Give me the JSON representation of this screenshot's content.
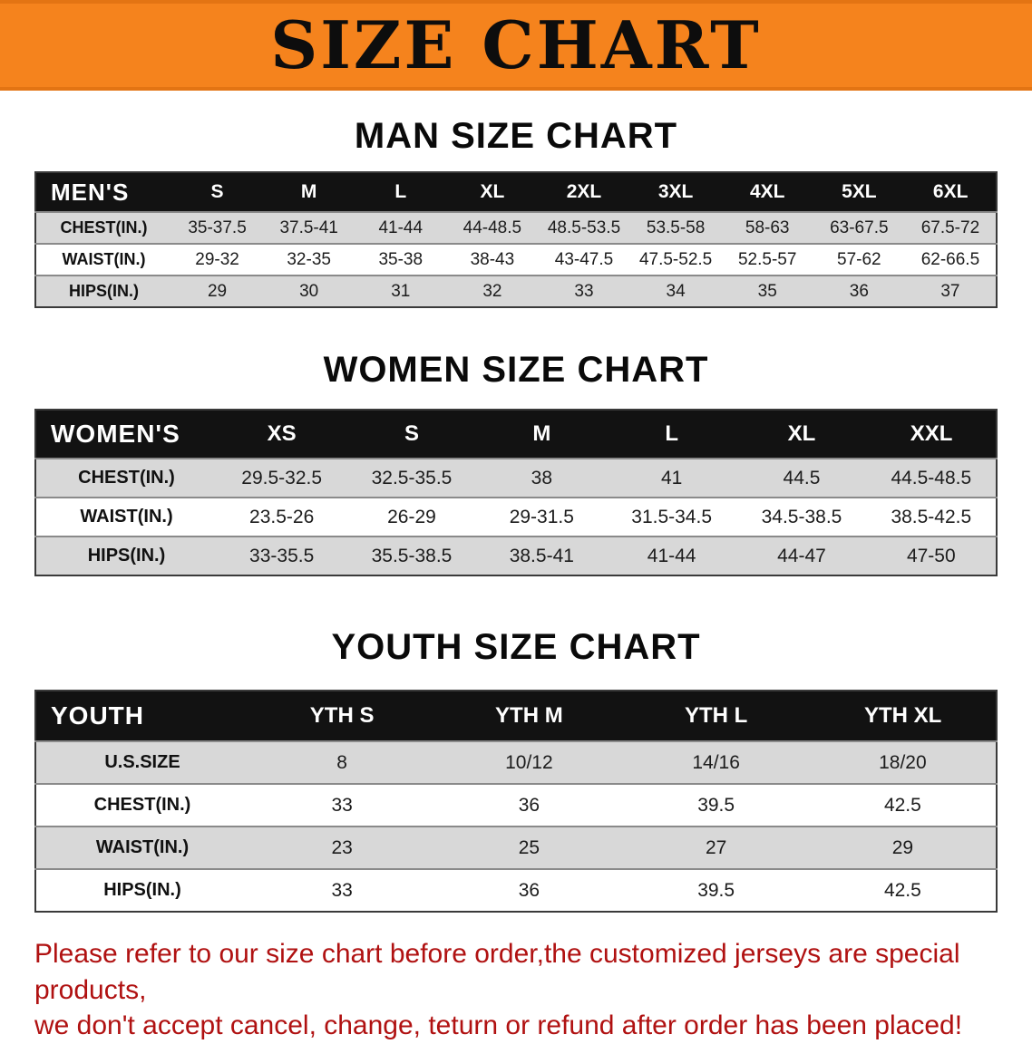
{
  "banner": {
    "title": "SIZE CHART",
    "background_color": "#f5831d",
    "text_color": "#0d0d0d"
  },
  "sections": [
    {
      "id": "men",
      "heading": "MAN SIZE CHART",
      "table": {
        "header": [
          "MEN'S",
          "S",
          "M",
          "L",
          "XL",
          "2XL",
          "3XL",
          "4XL",
          "5XL",
          "6XL"
        ],
        "rows": [
          {
            "label": "CHEST(IN.)",
            "values": [
              "35-37.5",
              "37.5-41",
              "41-44",
              "44-48.5",
              "48.5-53.5",
              "53.5-58",
              "58-63",
              "63-67.5",
              "67.5-72"
            ]
          },
          {
            "label": "WAIST(IN.)",
            "values": [
              "29-32",
              "32-35",
              "35-38",
              "38-43",
              "43-47.5",
              "47.5-52.5",
              "52.5-57",
              "57-62",
              "62-66.5"
            ]
          },
          {
            "label": "HIPS(IN.)",
            "values": [
              "29",
              "30",
              "31",
              "32",
              "33",
              "34",
              "35",
              "36",
              "37"
            ]
          }
        ]
      }
    },
    {
      "id": "women",
      "heading": "WOMEN SIZE CHART",
      "table": {
        "header": [
          "WOMEN'S",
          "XS",
          "S",
          "M",
          "L",
          "XL",
          "XXL"
        ],
        "rows": [
          {
            "label": "CHEST(IN.)",
            "values": [
              "29.5-32.5",
              "32.5-35.5",
              "38",
              "41",
              "44.5",
              "44.5-48.5"
            ]
          },
          {
            "label": "WAIST(IN.)",
            "values": [
              "23.5-26",
              "26-29",
              "29-31.5",
              "31.5-34.5",
              "34.5-38.5",
              "38.5-42.5"
            ]
          },
          {
            "label": "HIPS(IN.)",
            "values": [
              "33-35.5",
              "35.5-38.5",
              "38.5-41",
              "41-44",
              "44-47",
              "47-50"
            ]
          }
        ]
      }
    },
    {
      "id": "youth",
      "heading": "YOUTH SIZE CHART",
      "table": {
        "header": [
          "YOUTH",
          "YTH S",
          "YTH M",
          "YTH L",
          "YTH XL"
        ],
        "rows": [
          {
            "label": "U.S.SIZE",
            "values": [
              "8",
              "10/12",
              "14/16",
              "18/20"
            ]
          },
          {
            "label": "CHEST(IN.)",
            "values": [
              "33",
              "36",
              "39.5",
              "42.5"
            ]
          },
          {
            "label": "WAIST(IN.)",
            "values": [
              "23",
              "25",
              "27",
              "29"
            ]
          },
          {
            "label": "HIPS(IN.)",
            "values": [
              "33",
              "36",
              "39.5",
              "42.5"
            ]
          }
        ]
      }
    }
  ],
  "footer": {
    "text_color": "#b01111",
    "lines": [
      "Please refer to our size chart before order,the customized jerseys are special products,",
      "we don't accept cancel, change, teturn or refund after order has been placed!"
    ]
  }
}
